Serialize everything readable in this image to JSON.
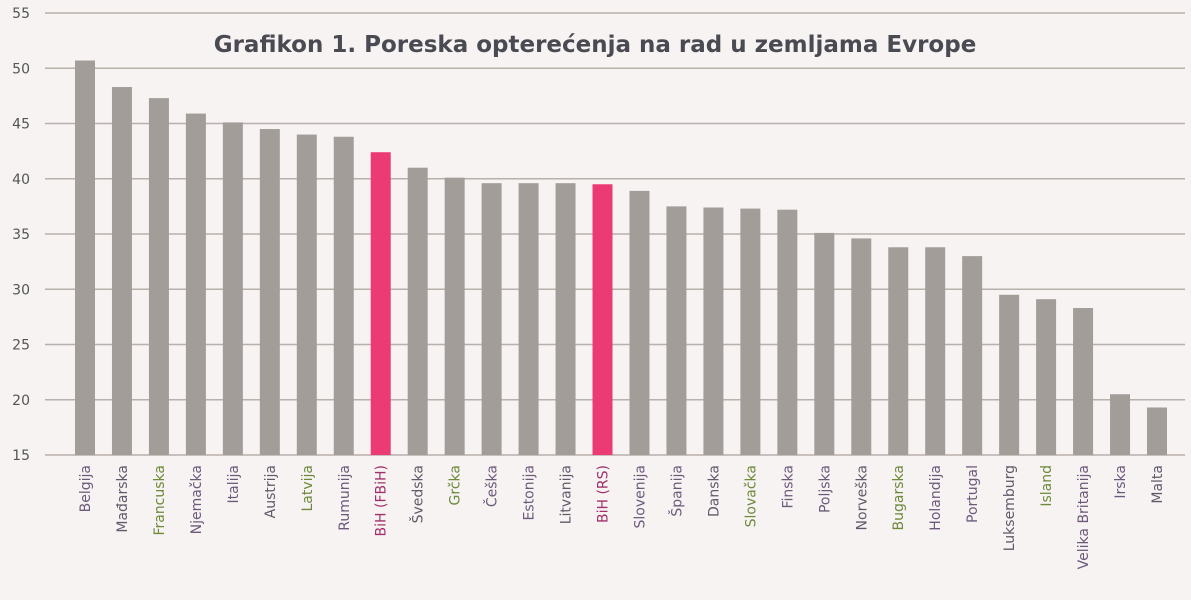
{
  "chart_data": {
    "type": "bar",
    "title": "Grafikon 1. Poreska opterećenja na rad u zemljama Evrope",
    "xlabel": "",
    "ylabel": "",
    "ylim": [
      15,
      55
    ],
    "yticks": [
      15,
      20,
      25,
      30,
      35,
      40,
      45,
      50,
      55
    ],
    "grid": true,
    "categories": [
      "Belgija",
      "Mađarska",
      "Francuska",
      "Njemačka",
      "Italija",
      "Austrija",
      "Latvija",
      "Rumunija",
      "BiH (FBiH)",
      "Švedska",
      "Grčka",
      "Češka",
      "Estonija",
      "Litvanija",
      "BiH (RS)",
      "Slovenija",
      "Španija",
      "Danska",
      "Slovačka",
      "Finska",
      "Poljska",
      "Norveška",
      "Bugarska",
      "Holandija",
      "Portugal",
      "Luksemburg",
      "Island",
      "Velika Britanija",
      "Irska",
      "Malta"
    ],
    "values": [
      50.7,
      48.3,
      47.3,
      45.9,
      45.1,
      44.5,
      44.0,
      43.8,
      42.4,
      41.0,
      40.1,
      39.6,
      39.6,
      39.6,
      39.5,
      38.9,
      37.5,
      37.4,
      37.3,
      37.2,
      35.1,
      34.6,
      33.8,
      33.8,
      33.0,
      29.5,
      29.1,
      28.3,
      20.5,
      19.3
    ],
    "highlighted": [
      "BiH (FBiH)",
      "BiH (RS)"
    ],
    "colors": {
      "bar": "#a39d9a",
      "highlight": "#ec3a74",
      "grid": "#b8b0ab"
    }
  }
}
